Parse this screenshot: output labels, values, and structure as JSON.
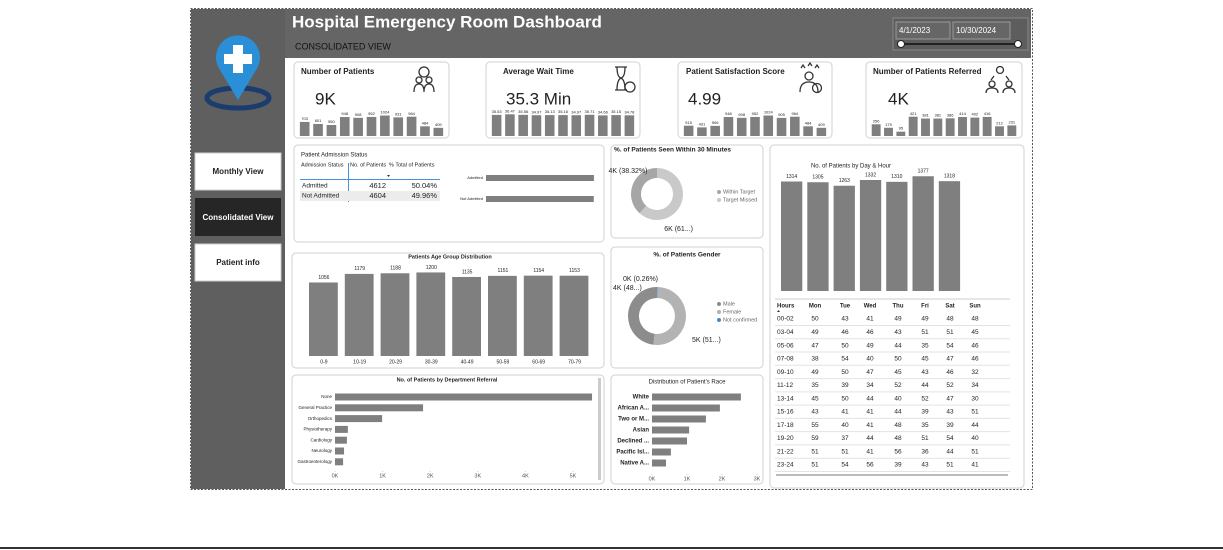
{
  "header": {
    "title": "Hospital Emergency Room Dashboard",
    "subtitle": "CONSOLIDATED VIEW",
    "date_from": "4/1/2023",
    "date_to": "10/30/2024"
  },
  "nav": [
    "Monthly View",
    "Consolidated View",
    "Patient info"
  ],
  "kpis": [
    {
      "title": "Number of Patients",
      "value": "9K",
      "values": [
        703,
        601,
        550,
        948,
        908,
        952,
        1024,
        931,
        964,
        484,
        409
      ],
      "ylim": [
        0,
        1100
      ]
    },
    {
      "title": "Average Wait Time",
      "value": "35.3 Min",
      "values": [
        35.53,
        36.47,
        35.56,
        34.97,
        35.13,
        35.16,
        34.97,
        35.71,
        34.66,
        35.15,
        34.78
      ],
      "ylim": [
        0,
        37
      ]
    },
    {
      "title": "Patient Satisfaction Score",
      "value": "4.99",
      "values": [
        515,
        431,
        506,
        948,
        908,
        952,
        1024,
        905,
        964,
        484,
        409
      ],
      "ylim": [
        0,
        1100
      ]
    },
    {
      "title": "Number of Patients Referred",
      "value": "4K",
      "values": [
        256,
        179,
        95,
        421,
        381,
        381,
        386,
        414,
        402,
        416,
        212,
        231
      ],
      "ylim": [
        0,
        480
      ]
    }
  ],
  "chart_data": [
    {
      "type": "table-bar",
      "title": "Patient Admission Status",
      "columns": [
        "Admission Status",
        "No. of Patients",
        "% Total of Patients"
      ],
      "rows": [
        [
          "Admitted",
          4612,
          "50.04%"
        ],
        [
          "Not Admitted",
          4604,
          "49.96%"
        ]
      ],
      "xlim": [
        0,
        4700
      ],
      "color": "#7f7f7f"
    },
    {
      "type": "pie",
      "title": "%. of Patients Seen Within 30 Minutes",
      "categories": [
        "Within Target",
        "Target Missed"
      ],
      "values": [
        38.32,
        61.68
      ],
      "value_labels": [
        "4K (38.32%)",
        "6K (61...)"
      ],
      "colors": [
        "#a6a6a6",
        "#c9c9c9"
      ]
    },
    {
      "type": "bar-table",
      "title": "No. of Patients by Day & Hour",
      "values": [
        1314,
        1305,
        1263,
        1332,
        1310,
        1377,
        1318
      ],
      "ylim": [
        0,
        1500
      ],
      "color": "#7f7f7f",
      "table": {
        "columns": [
          "Hours",
          "Mon",
          "Tue",
          "Wed",
          "Thu",
          "Fri",
          "Sat",
          "Sun"
        ],
        "rows": [
          [
            "00-02",
            50,
            43,
            41,
            49,
            49,
            48,
            48
          ],
          [
            "03-04",
            49,
            46,
            46,
            43,
            51,
            51,
            45
          ],
          [
            "05-06",
            47,
            50,
            49,
            44,
            35,
            54,
            46
          ],
          [
            "07-08",
            38,
            54,
            40,
            50,
            45,
            47,
            46
          ],
          [
            "09-10",
            49,
            50,
            47,
            45,
            43,
            46,
            32
          ],
          [
            "11-12",
            35,
            39,
            34,
            52,
            44,
            52,
            34
          ],
          [
            "13-14",
            45,
            50,
            44,
            40,
            52,
            47,
            30
          ],
          [
            "15-16",
            43,
            41,
            41,
            44,
            39,
            43,
            51
          ],
          [
            "17-18",
            55,
            40,
            41,
            48,
            35,
            39,
            44
          ],
          [
            "19-20",
            59,
            37,
            44,
            48,
            51,
            54,
            40
          ],
          [
            "21-22",
            51,
            51,
            41,
            56,
            36,
            44,
            51
          ],
          [
            "23-24",
            51,
            54,
            56,
            39,
            43,
            51,
            41
          ]
        ]
      }
    },
    {
      "type": "bar",
      "title": "Patients Age Group Distribution",
      "categories": [
        "0-9",
        "10-19",
        "20-29",
        "30-39",
        "40-49",
        "50-59",
        "60-69",
        "70-79"
      ],
      "values": [
        1056,
        1179,
        1188,
        1200,
        1135,
        1151,
        1154,
        1153
      ],
      "ylim": [
        0,
        1350
      ],
      "color": "#7f7f7f"
    },
    {
      "type": "pie",
      "title": "%. of Patients Gender",
      "categories": [
        "Male",
        "Female",
        "Not confirmed"
      ],
      "values": [
        48.0,
        51.74,
        0.26
      ],
      "value_labels": [
        "4K (48...)",
        "5K (51...)",
        "0K (0.26%)"
      ],
      "colors": [
        "#8c8c8c",
        "#b3b3b3",
        "#3d8bd6"
      ]
    },
    {
      "type": "hbar",
      "title": "No. of Patients by Department Referral",
      "categories": [
        "None",
        "General Practice",
        "Orthopedics",
        "Physiotherapy",
        "Cardiology",
        "Neurology",
        "Gastroenterology"
      ],
      "values": [
        5400,
        1850,
        990,
        270,
        250,
        190,
        170
      ],
      "xlim": [
        0,
        5500
      ],
      "xticks": [
        {
          "value": 0,
          "label": "0K"
        },
        {
          "value": 1000,
          "label": "1K"
        },
        {
          "value": 2000,
          "label": "2K"
        },
        {
          "value": 3000,
          "label": "3K"
        },
        {
          "value": 4000,
          "label": "4K"
        },
        {
          "value": 5000,
          "label": "5K"
        }
      ],
      "color": "#7f7f7f"
    },
    {
      "type": "hbar",
      "title": "Distribution of Patient's Race",
      "categories": [
        "White",
        "African A...",
        "Two or M...",
        "Asian",
        "Declined ...",
        "Pacific Isl...",
        "Native A..."
      ],
      "values": [
        2540,
        1940,
        1540,
        1060,
        1000,
        540,
        400
      ],
      "xlim": [
        0,
        3000
      ],
      "xticks": [
        {
          "value": 0,
          "label": "0K"
        },
        {
          "value": 1000,
          "label": "1K"
        },
        {
          "value": 2000,
          "label": "2K"
        },
        {
          "value": 3000,
          "label": "3K"
        }
      ],
      "color": "#7f7f7f"
    }
  ]
}
